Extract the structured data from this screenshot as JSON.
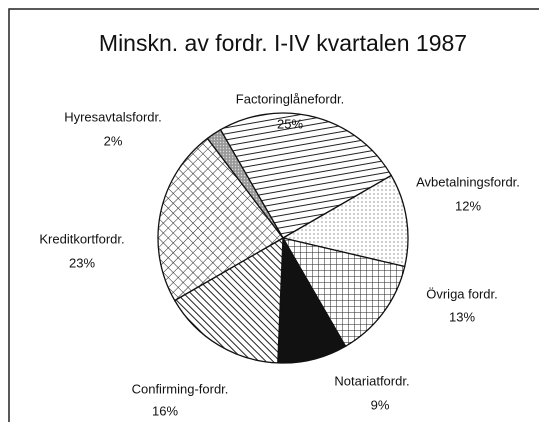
{
  "chart_data": {
    "type": "pie",
    "title": "Minskn. av fordr. I-IV kvartalen 1987",
    "categories": [
      "Factoringlånefordr.",
      "Avbetalningsfordr.",
      "Övriga fordr.",
      "Notariatfordr.",
      "Confirming-fordr.",
      "Kreditkortfordr.",
      "Hyresavtalsfordr."
    ],
    "values": [
      25,
      12,
      13,
      9,
      16,
      23,
      2
    ],
    "value_labels": [
      "25%",
      "12%",
      "13%",
      "9%",
      "16%",
      "23%",
      "2%"
    ]
  }
}
